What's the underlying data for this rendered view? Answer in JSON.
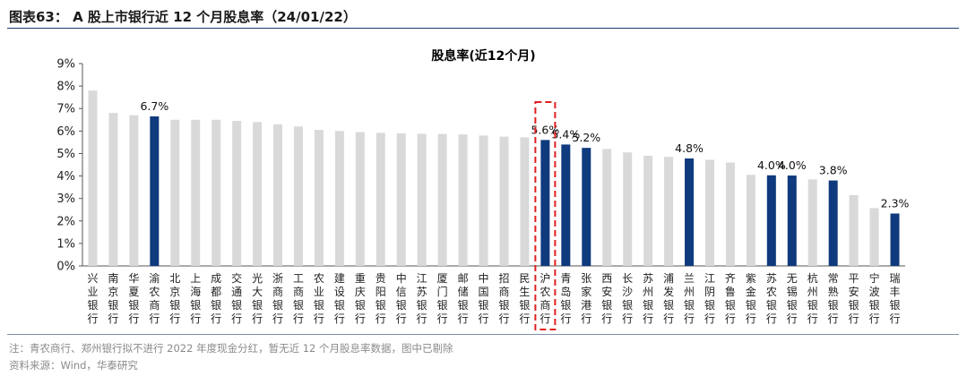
{
  "figure": {
    "title": "图表63：  A 股上市银行近 12 个月股息率（24/01/22）"
  },
  "chart_data": {
    "type": "bar",
    "title": "股息率(近12个月)",
    "xlabel": "",
    "ylabel": "",
    "ylim": [
      0,
      9
    ],
    "yticks": [
      "0%",
      "1%",
      "2%",
      "3%",
      "4%",
      "5%",
      "6%",
      "7%",
      "8%",
      "9%"
    ],
    "grid": false,
    "legend": "none",
    "colors": {
      "default": "#d9d9d9",
      "highlight": "#0f3a7d",
      "box": "#e02020"
    },
    "categories": [
      "兴业银行",
      "南京银行",
      "华夏银行",
      "渝农商行",
      "北京银行",
      "上海银行",
      "成都银行",
      "交通银行",
      "光大银行",
      "浙商银行",
      "工商银行",
      "农业银行",
      "建设银行",
      "重庆银行",
      "贵阳银行",
      "中信银行",
      "江苏银行",
      "厦门银行",
      "邮储银行",
      "中国银行",
      "招商银行",
      "民生银行",
      "沪农商行",
      "青岛银行",
      "张家港行",
      "西安银行",
      "长沙银行",
      "苏州银行",
      "浦发银行",
      "兰州银行",
      "江阴银行",
      "齐鲁银行",
      "紫金银行",
      "苏农银行",
      "无锡银行",
      "杭州银行",
      "常熟银行",
      "平安银行",
      "宁波银行",
      "瑞丰银行"
    ],
    "values": [
      7.8,
      6.8,
      6.7,
      6.65,
      6.5,
      6.5,
      6.5,
      6.45,
      6.4,
      6.3,
      6.2,
      6.05,
      6.0,
      5.95,
      5.92,
      5.9,
      5.88,
      5.87,
      5.85,
      5.8,
      5.75,
      5.72,
      5.6,
      5.4,
      5.25,
      5.2,
      5.05,
      4.9,
      4.85,
      4.78,
      4.72,
      4.6,
      4.05,
      4.03,
      4.02,
      3.85,
      3.8,
      3.15,
      2.57,
      2.33
    ],
    "highlighted": [
      "渝农商行",
      "沪农商行",
      "青岛银行",
      "张家港行",
      "兰州银行",
      "苏农银行",
      "无锡银行",
      "常熟银行",
      "瑞丰银行"
    ],
    "boxed": "沪农商行",
    "data_labels": [
      {
        "category": "渝农商行",
        "text": "6.7%"
      },
      {
        "category": "沪农商行",
        "text": "5.6%"
      },
      {
        "category": "青岛银行",
        "text": "5.4%"
      },
      {
        "category": "张家港行",
        "text": "5.2%"
      },
      {
        "category": "兰州银行",
        "text": "4.8%"
      },
      {
        "category": "苏农银行",
        "text": "4.0%"
      },
      {
        "category": "无锡银行",
        "text": "4.0%"
      },
      {
        "category": "常熟银行",
        "text": "3.8%"
      },
      {
        "category": "瑞丰银行",
        "text": "2.3%"
      }
    ]
  },
  "notes": {
    "note": "注：青农商行、郑州银行拟不进行 2022 年度现金分红，暂无近 12 个月股息率数据，图中已剔除",
    "source": "资料来源：Wind，华泰研究"
  }
}
